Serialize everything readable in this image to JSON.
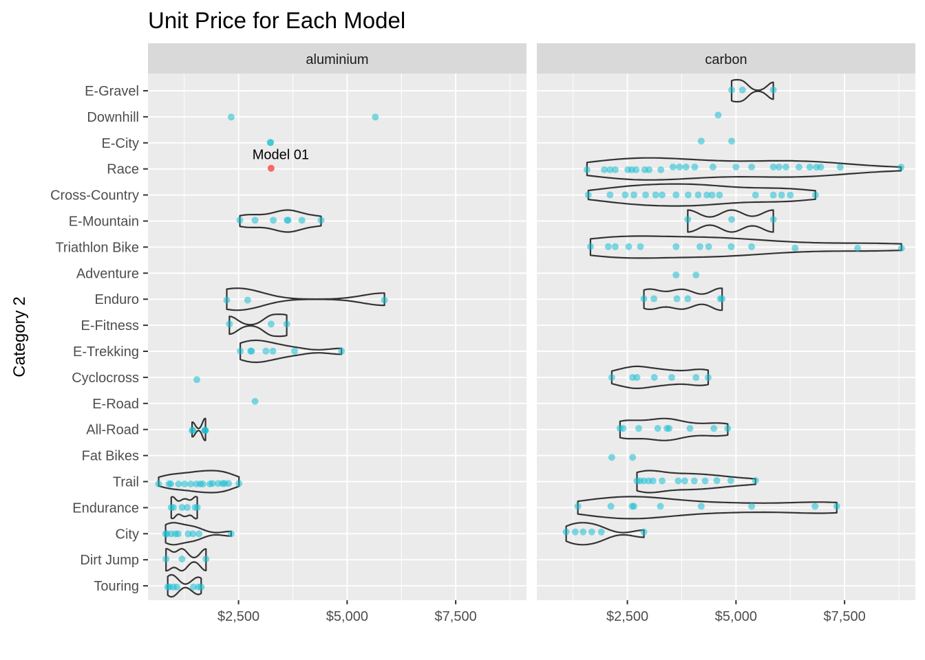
{
  "chart_data": {
    "type": "violin",
    "title": "Unit Price for Each Model",
    "xlabel": "",
    "ylabel": "Category 2",
    "x_ticks": [
      2500,
      5000,
      7500
    ],
    "x_tick_labels": [
      "$2,500",
      "$5,000",
      "$7,500"
    ],
    "xlim": [
      415,
      9130
    ],
    "grid": true,
    "categories": [
      "E-Gravel",
      "Downhill",
      "E-City",
      "Race",
      "Cross-Country",
      "E-Mountain",
      "Triathlon Bike",
      "Adventure",
      "Enduro",
      "E-Fitness",
      "E-Trekking",
      "Cyclocross",
      "E-Road",
      "All-Road",
      "Fat Bikes",
      "Trail",
      "Endurance",
      "City",
      "Dirt Jump",
      "Touring"
    ],
    "point_color": "#1ABED2",
    "highlight_color": "#F8514D",
    "annotation": {
      "label": "Model 01",
      "panel": "aluminium",
      "category": "Race",
      "x": 3250
    },
    "facets": [
      {
        "name": "aluminium",
        "series": [
          {
            "category": "Downhill",
            "values": [
              2330,
              5650
            ]
          },
          {
            "category": "E-City",
            "values": [
              3230,
              3240
            ]
          },
          {
            "category": "E-Mountain",
            "values": [
              2530,
              2880,
              3300,
              3620,
              3640,
              3960,
              4400
            ]
          },
          {
            "category": "Enduro",
            "values": [
              2230,
              2710,
              5860
            ]
          },
          {
            "category": "E-Fitness",
            "values": [
              2290,
              3250,
              3610
            ]
          },
          {
            "category": "E-Trekking",
            "values": [
              2540,
              2780,
              2800,
              3130,
              3290,
              3790,
              4870
            ]
          },
          {
            "category": "Cyclocross",
            "values": [
              1540
            ]
          },
          {
            "category": "E-Road",
            "values": [
              2880
            ]
          },
          {
            "category": "All-Road",
            "values": [
              1430,
              1450,
              1720,
              1730,
              1740
            ]
          },
          {
            "category": "Trail",
            "values": [
              660,
              900,
              940,
              1120,
              1260,
              1400,
              1530,
              1620,
              1680,
              1840,
              1900,
              2030,
              2130,
              2180,
              2270,
              2510
            ]
          },
          {
            "category": "Endurance",
            "values": [
              950,
              1000,
              1200,
              1320,
              1500,
              1550
            ]
          },
          {
            "category": "City",
            "values": [
              820,
              850,
              950,
              1050,
              1110,
              1340,
              1450,
              1590,
              2330
            ]
          },
          {
            "category": "Dirt Jump",
            "values": [
              830,
              1200,
              1750
            ]
          },
          {
            "category": "Touring",
            "values": [
              870,
              910,
              1000,
              1080,
              1460,
              1580,
              1640
            ]
          }
        ],
        "highlight": [
          {
            "category": "Race",
            "value": 3250
          }
        ]
      },
      {
        "name": "carbon",
        "series": [
          {
            "category": "E-Gravel",
            "values": [
              4900,
              5150,
              5860
            ]
          },
          {
            "category": "Downhill",
            "values": [
              4590
            ]
          },
          {
            "category": "E-City",
            "values": [
              4200,
              4900
            ]
          },
          {
            "category": "Race",
            "values": [
              1570,
              1970,
              2100,
              2220,
              2510,
              2600,
              2700,
              2900,
              3000,
              3270,
              3550,
              3700,
              3850,
              4050,
              4470,
              5000,
              5360,
              5860,
              5990,
              6150,
              6450,
              6700,
              6850,
              6950,
              7400,
              8800
            ]
          },
          {
            "category": "Cross-Country",
            "values": [
              1600,
              2100,
              2450,
              2650,
              2920,
              3150,
              3300,
              3620,
              3900,
              4130,
              4330,
              4450,
              4620,
              5450,
              5860,
              6050,
              6250,
              6830
            ]
          },
          {
            "category": "E-Mountain",
            "values": [
              3890,
              4900,
              5860
            ]
          },
          {
            "category": "Triathlon Bike",
            "values": [
              1650,
              2060,
              2220,
              2530,
              2800,
              3620,
              4170,
              4370,
              4890,
              5360,
              6360,
              7800,
              8810
            ]
          },
          {
            "category": "Adventure",
            "values": [
              3620,
              4080
            ]
          },
          {
            "category": "Enduro",
            "values": [
              2880,
              3110,
              3640,
              3890,
              4640,
              4680
            ]
          },
          {
            "category": "Cyclocross",
            "values": [
              2140,
              2620,
              2720,
              3120,
              3520,
              4080,
              4360
            ]
          },
          {
            "category": "All-Road",
            "values": [
              2330,
              2400,
              2760,
              3200,
              3410,
              3460,
              3940,
              4490,
              4810
            ]
          },
          {
            "category": "Fat Bikes",
            "values": [
              2140,
              2620
            ]
          },
          {
            "category": "Trail",
            "values": [
              2720,
              2790,
              2880,
              2990,
              3090,
              3300,
              3670,
              3820,
              4040,
              4290,
              4560,
              4880,
              5450
            ]
          },
          {
            "category": "Endurance",
            "values": [
              1360,
              2120,
              2610,
              2650,
              3260,
              4200,
              5360,
              6820,
              7320
            ]
          },
          {
            "category": "City",
            "values": [
              1090,
              1300,
              1480,
              1680,
              1900,
              2880
            ]
          }
        ],
        "highlight": []
      }
    ]
  }
}
